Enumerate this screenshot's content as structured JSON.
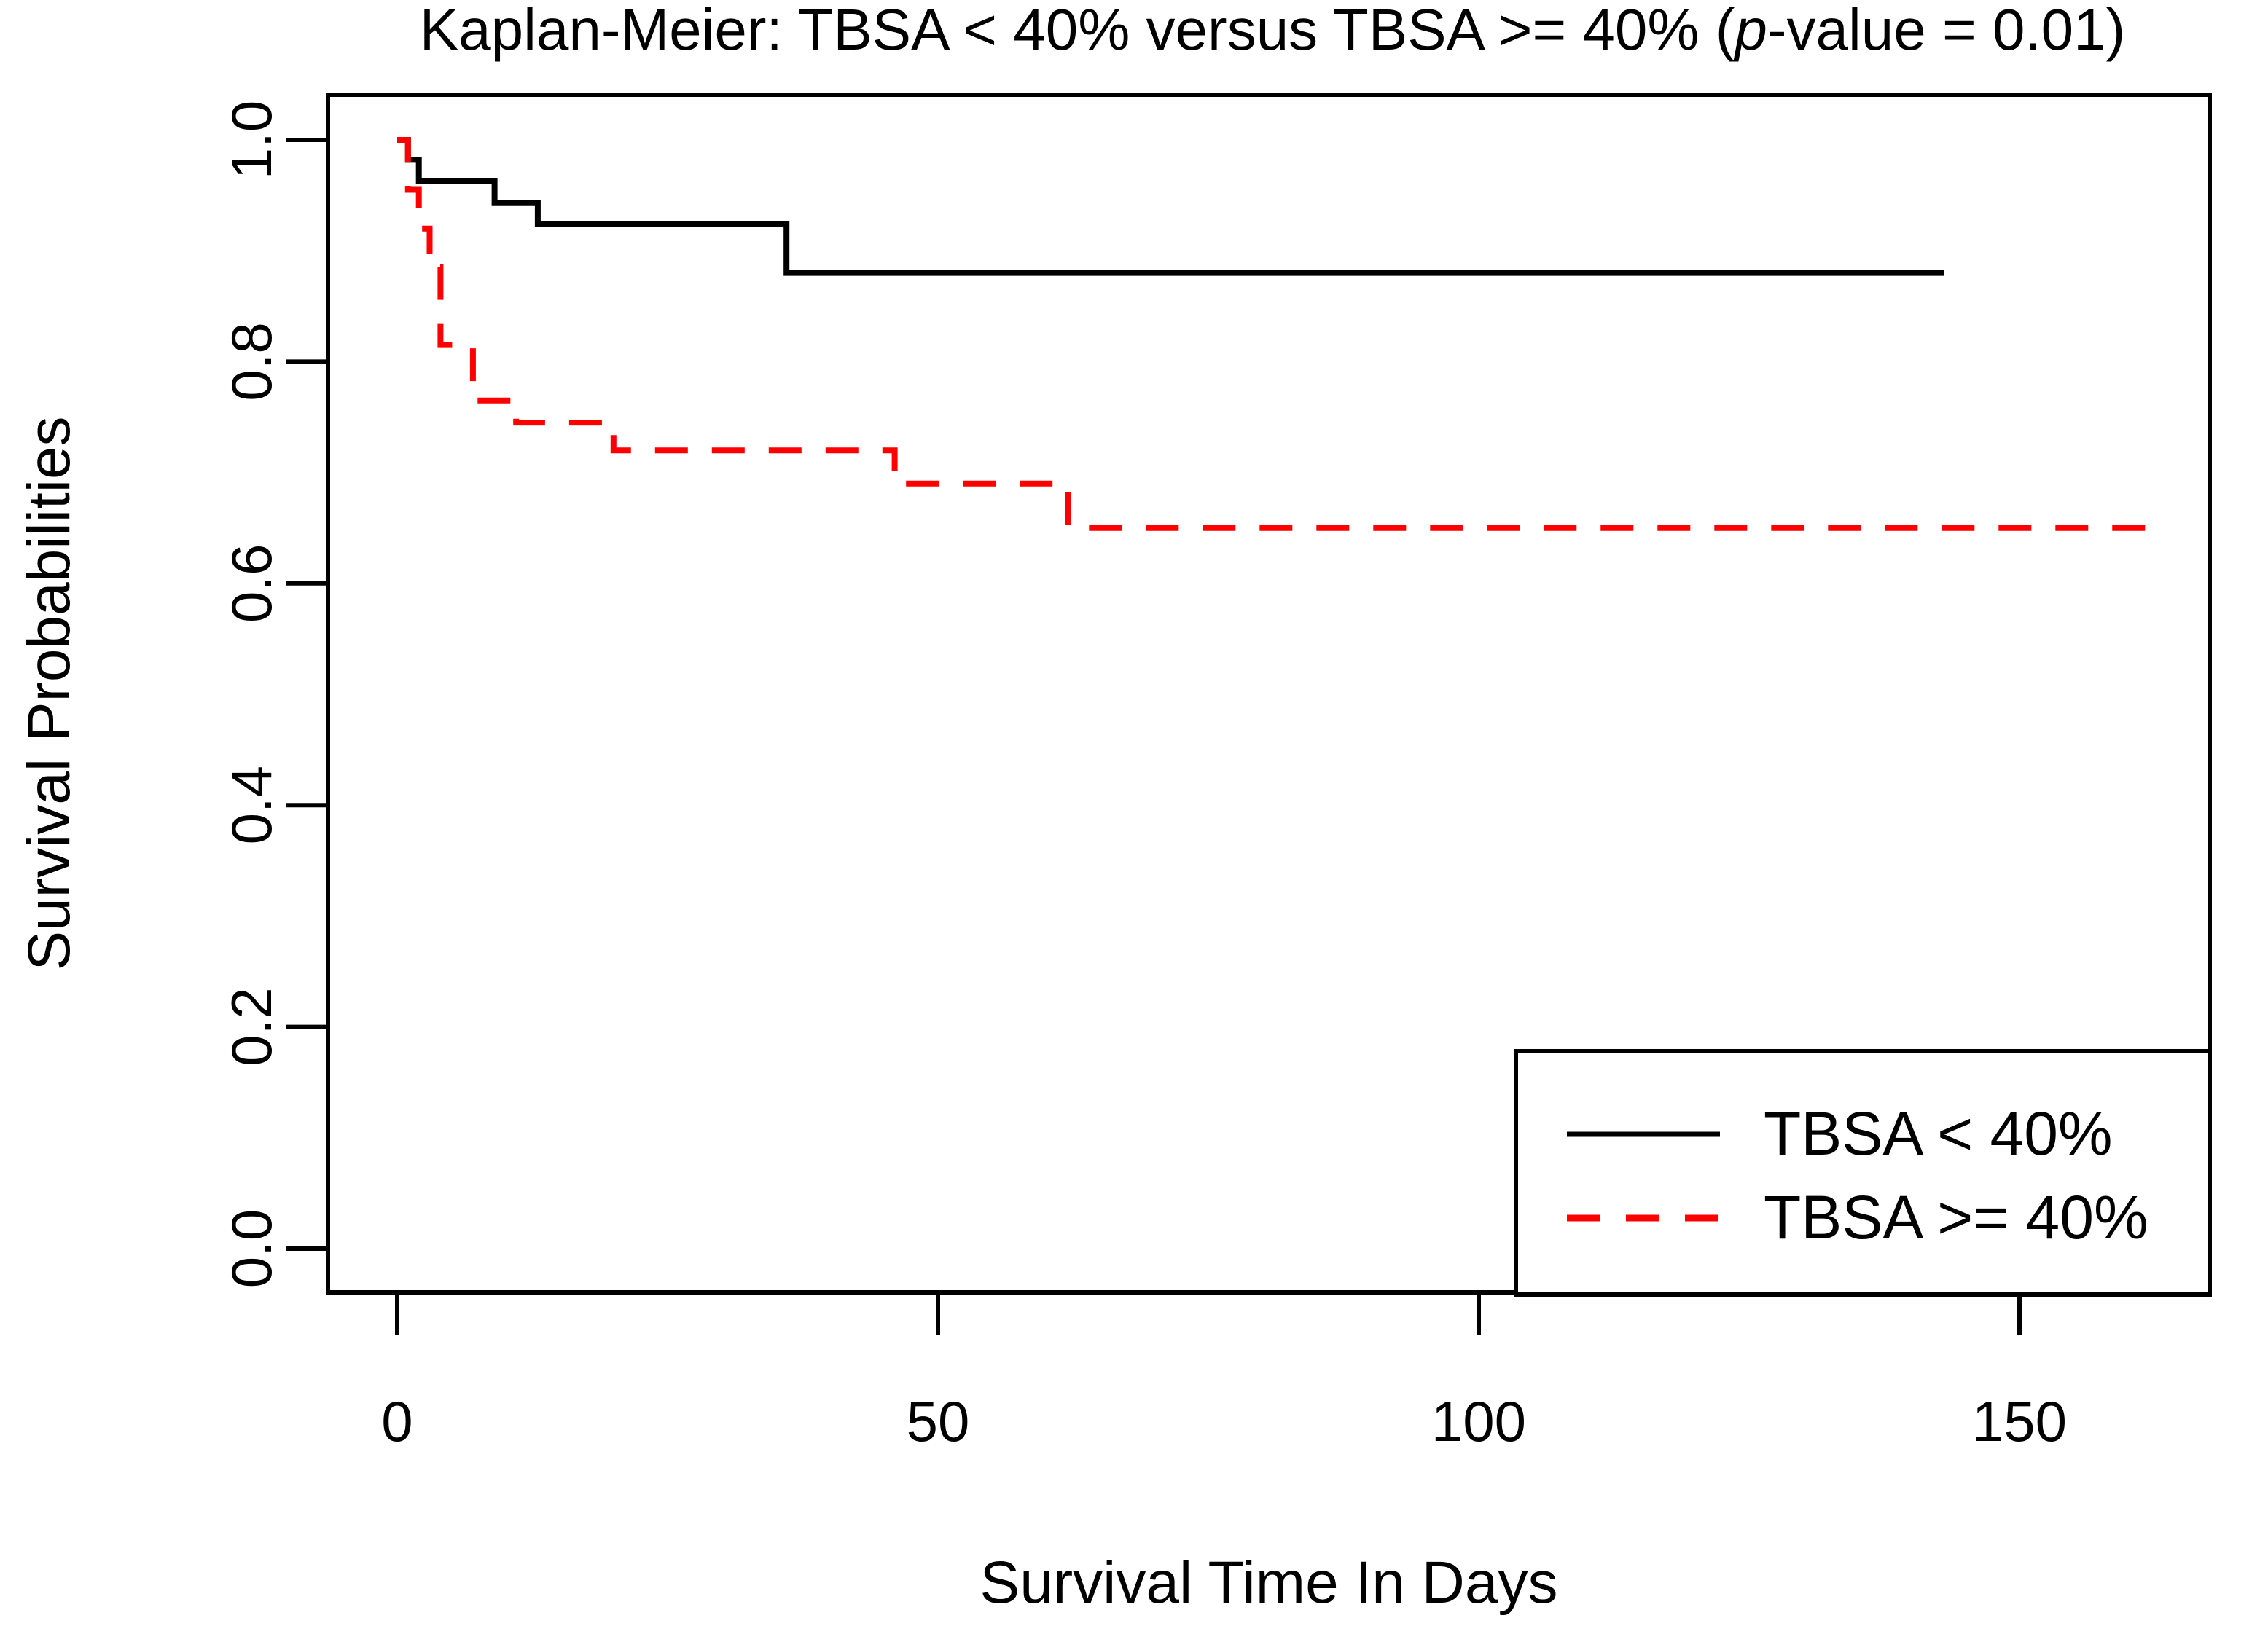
{
  "title": {
    "prefix": "Kaplan-Meier: TBSA < 40% versus TBSA >= 40% (",
    "p_symbol": "p",
    "suffix": "-value = 0.01)"
  },
  "chart_data": {
    "type": "line",
    "subtype": "kaplan-meier-step-curves",
    "title": "Kaplan-Meier: TBSA < 40% versus TBSA >= 40% (p-value = 0.01)",
    "p_value": "0.01",
    "xlabel": "Survival Time In Days",
    "ylabel": "Survival Probabilities",
    "x_ticks": [
      0,
      50,
      100,
      150
    ],
    "x_tick_labels": [
      "0",
      "50",
      "100",
      "150"
    ],
    "y_ticks": [
      0.0,
      0.2,
      0.4,
      0.6,
      0.8,
      1.0
    ],
    "y_tick_labels": [
      "0.0",
      "0.2",
      "0.4",
      "0.6",
      "0.8",
      "1.0"
    ],
    "xlim": [
      0,
      162
    ],
    "ylim": [
      0.0,
      1.0
    ],
    "grid": false,
    "legend_position": "bottom-right",
    "axis_color": "#000000",
    "background_color": "#ffffff",
    "series": [
      {
        "name": "TBSA < 40%",
        "color": "#000000",
        "style": "solid",
        "steps": [
          [
            0,
            1.0
          ],
          [
            1,
            0.982
          ],
          [
            2,
            0.963
          ],
          [
            9,
            0.943
          ],
          [
            13,
            0.924
          ],
          [
            36,
            0.88
          ]
        ],
        "end_time": 143,
        "final_probability": 0.88
      },
      {
        "name": "TBSA >= 40%",
        "color": "#FF0000",
        "style": "dashed",
        "steps": [
          [
            0,
            1.0
          ],
          [
            1,
            0.955
          ],
          [
            2,
            0.92
          ],
          [
            3,
            0.885
          ],
          [
            4,
            0.815
          ],
          [
            7,
            0.765
          ],
          [
            11,
            0.745
          ],
          [
            20,
            0.72
          ],
          [
            46,
            0.69
          ],
          [
            62,
            0.65
          ]
        ],
        "end_time": 162,
        "final_probability": 0.65
      }
    ]
  }
}
